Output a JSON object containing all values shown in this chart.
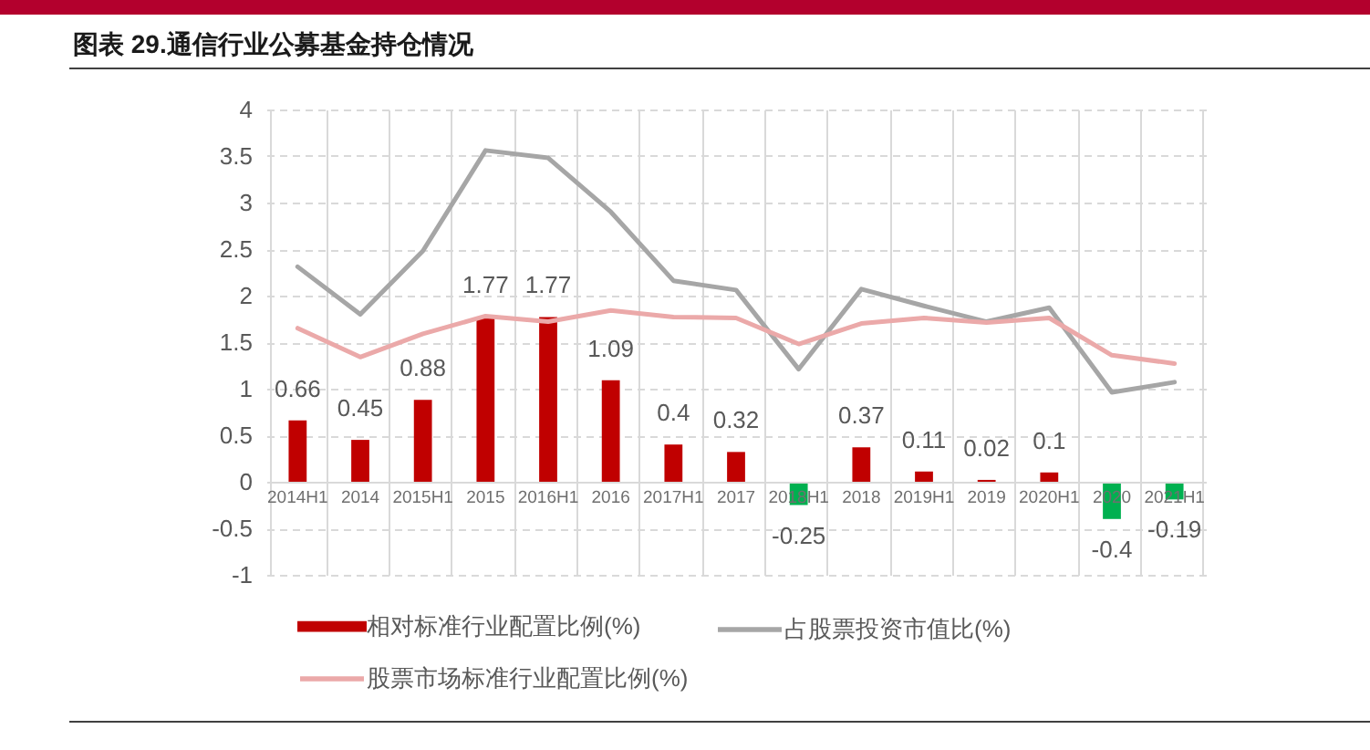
{
  "chart_data": {
    "type": "bar",
    "title": "图表 29.通信行业公募基金持仓情况",
    "categories": [
      "2014H1",
      "2014",
      "2015H1",
      "2015",
      "2016H1",
      "2016",
      "2017H1",
      "2017",
      "2018H1",
      "2018",
      "2019H1",
      "2019",
      "2020H1",
      "2020",
      "2021H1"
    ],
    "series": [
      {
        "name": "相对标准行业配置比例(%)",
        "color": "#c00000",
        "colors": [
          "#c00000",
          "#c00000",
          "#c00000",
          "#c00000",
          "#c00000",
          "#c00000",
          "#c00000",
          "#c00000",
          "#00b050",
          "#c00000",
          "#c00000",
          "#c00000",
          "#c00000",
          "#00b050",
          "#00b050"
        ],
        "values": [
          0.66,
          0.45,
          0.88,
          1.77,
          1.77,
          1.09,
          0.4,
          0.32,
          -0.25,
          0.37,
          0.11,
          0.02,
          0.1,
          -0.4,
          -0.19
        ],
        "value_labels": [
          "0.66",
          "0.45",
          "0.88",
          "1.77",
          "1.77",
          "1.09",
          "0.4",
          "0.32",
          "-0.25",
          "0.37",
          "0.11",
          "0.02",
          "0.1",
          "-0.4",
          "-0.19"
        ]
      },
      {
        "name": "占股票投资市值比(%)",
        "type": "line",
        "color": "#a6a6a6",
        "values": [
          2.31,
          1.8,
          2.48,
          3.56,
          3.48,
          2.9,
          2.16,
          2.06,
          1.21,
          2.07,
          1.89,
          1.72,
          1.87,
          0.96,
          1.07
        ]
      },
      {
        "name": "股票市场标准行业配置比例(%)",
        "type": "line",
        "color": "#eba9a9",
        "values": [
          1.65,
          1.34,
          1.59,
          1.78,
          1.72,
          1.84,
          1.77,
          1.76,
          1.48,
          1.7,
          1.76,
          1.71,
          1.76,
          1.36,
          1.27
        ]
      }
    ],
    "ylim": [
      -1,
      4
    ],
    "yticks": [
      -1,
      -0.5,
      0,
      0.5,
      1,
      1.5,
      2,
      2.5,
      3,
      3.5,
      4
    ],
    "grid": true,
    "legend": "bottom",
    "line_style": "solid"
  }
}
